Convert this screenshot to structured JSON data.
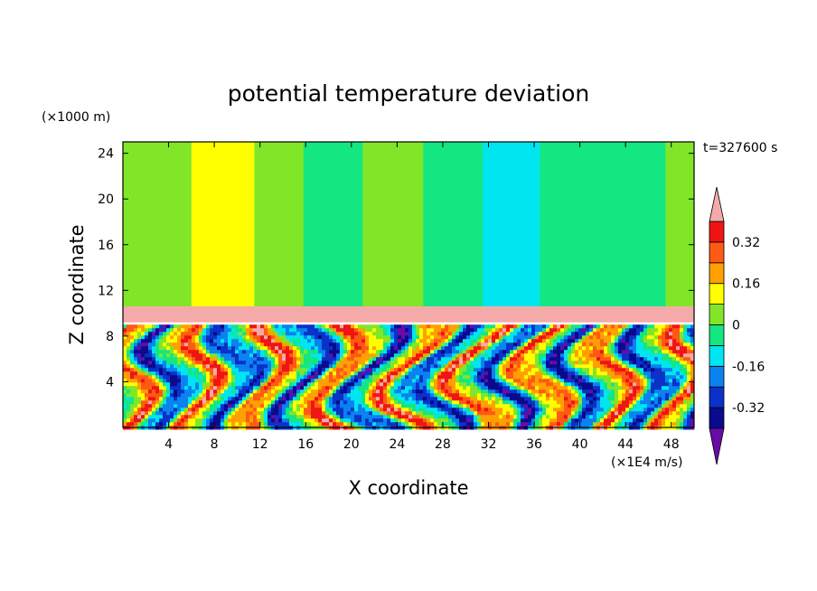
{
  "chart_data": {
    "type": "heatmap",
    "title": "potential temperature deviation",
    "xlabel": "X coordinate",
    "ylabel": "Z coordinate",
    "x_unit": "(×1E4 m/s)",
    "y_unit": "(×1000 m)",
    "time_label": "t=327600 s",
    "xlim": [
      0,
      50
    ],
    "ylim": [
      0,
      25
    ],
    "x_ticks": [
      "4",
      "8",
      "12",
      "16",
      "20",
      "24",
      "28",
      "32",
      "36",
      "40",
      "44",
      "48"
    ],
    "y_ticks": [
      "4",
      "8",
      "12",
      "16",
      "20",
      "24"
    ],
    "colorbar": {
      "levels": [
        -0.4,
        -0.32,
        -0.24,
        -0.16,
        -0.08,
        0,
        0.08,
        0.16,
        0.24,
        0.32,
        0.4
      ],
      "tick_labels": [
        "0.32",
        "0.16",
        "0",
        "-0.16",
        "-0.32"
      ],
      "colors_low_to_high": [
        "#6a0aa8",
        "#0a0a8c",
        "#0a32c8",
        "#0a82f0",
        "#00e6f0",
        "#14e682",
        "#82e628",
        "#ffff00",
        "#ffa000",
        "#ff5a14",
        "#f01414",
        "#f5aaaa"
      ]
    },
    "upper_bands": [
      {
        "x": [
          0,
          2.5
        ],
        "value": 0.04
      },
      {
        "x": [
          2.5,
          6
        ],
        "value": 0.04
      },
      {
        "x": [
          6,
          11.5
        ],
        "value": 0.1
      },
      {
        "x": [
          11.5,
          15.8
        ],
        "value": 0.04
      },
      {
        "x": [
          15.8,
          21
        ],
        "value": -0.04
      },
      {
        "x": [
          21,
          26.3
        ],
        "value": 0.04
      },
      {
        "x": [
          26.3,
          31.5
        ],
        "value": -0.04
      },
      {
        "x": [
          31.5,
          36.5
        ],
        "value": -0.1
      },
      {
        "x": [
          36.5,
          42
        ],
        "value": -0.04
      },
      {
        "x": [
          42,
          47.5
        ],
        "value": -0.04
      },
      {
        "x": [
          47.5,
          50
        ],
        "value": 0.04
      }
    ],
    "inversion_layer": {
      "z": [
        9.2,
        10.6
      ],
      "value": 0.42
    },
    "turbulent_layer": {
      "z": [
        0,
        9.0
      ],
      "range": [
        -0.4,
        0.4
      ]
    }
  }
}
